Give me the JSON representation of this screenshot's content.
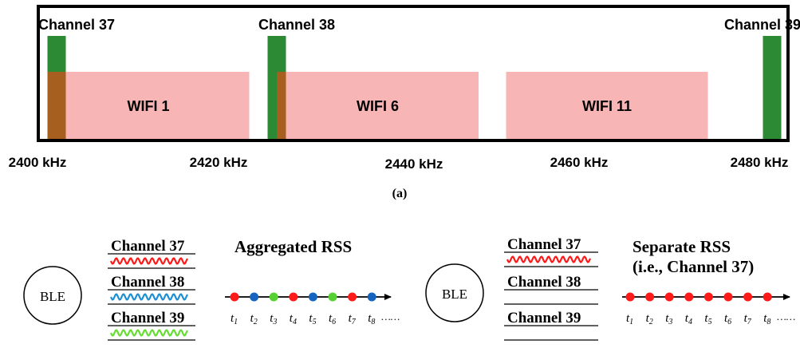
{
  "colors": {
    "ble_channel": "#2d8a34",
    "wifi": "#f7b5b5",
    "overlap": "#a65f1f",
    "red": "#ff1a1a",
    "blue": "#1565c0",
    "green": "#55d232",
    "ch38_wave": "#1e90d6",
    "ch39_wave": "#66dd33"
  },
  "spectrum": {
    "ble_channels": [
      {
        "label": "Channel 37",
        "freq": 2402
      },
      {
        "label": "Channel 38",
        "freq": 2426
      },
      {
        "label": "Channel 39",
        "freq": 2480
      }
    ],
    "wifi_channels": [
      {
        "label": "WIFI 1",
        "from": 2401,
        "to": 2423
      },
      {
        "label": "WIFI 6",
        "from": 2426,
        "to": 2448
      },
      {
        "label": "WIFI 11",
        "from": 2451,
        "to": 2473
      }
    ],
    "freq_ticks": [
      "2400 kHz",
      "2420 kHz",
      "2440 kHz",
      "2460 kHz",
      "2480 kHz"
    ],
    "subfigure_label": "(a)"
  },
  "bottom": {
    "left": {
      "ble_label": "BLE",
      "title": "Aggregated RSS",
      "channels": [
        "Channel 37",
        "Channel 38",
        "Channel 39"
      ],
      "wave_colors": [
        "red",
        "blue",
        "green"
      ],
      "dot_colors": [
        "red",
        "blue",
        "green",
        "red",
        "blue",
        "green",
        "red",
        "blue"
      ]
    },
    "right": {
      "ble_label": "BLE",
      "title_line1": "Separate RSS",
      "title_line2": "(i.e., Channel 37)",
      "channels": [
        "Channel 37",
        "Channel 38",
        "Channel 39"
      ],
      "wave_colors": [
        "red",
        null,
        null
      ],
      "dot_colors": [
        "red",
        "red",
        "red",
        "red",
        "red",
        "red",
        "red",
        "red"
      ]
    },
    "time_labels": [
      "t1",
      "t2",
      "t3",
      "t4",
      "t5",
      "t6",
      "t7",
      "t8"
    ],
    "ellipsis": "……"
  }
}
